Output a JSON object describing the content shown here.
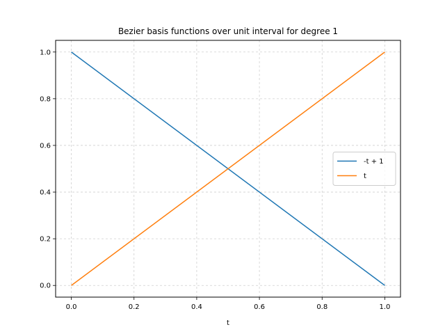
{
  "chart_data": {
    "type": "line",
    "title": "Bezier basis functions over unit interval for degree 1",
    "xlabel": "t",
    "ylabel": "",
    "xlim": [
      -0.05,
      1.05
    ],
    "ylim": [
      -0.05,
      1.05
    ],
    "xticks": [
      "0.0",
      "0.2",
      "0.4",
      "0.6",
      "0.8",
      "1.0"
    ],
    "yticks": [
      "0.0",
      "0.2",
      "0.4",
      "0.6",
      "0.8",
      "1.0"
    ],
    "grid": true,
    "legend_position": "center-right",
    "series": [
      {
        "name": "-t + 1",
        "color": "#1f77b4",
        "x": [
          0.0,
          1.0
        ],
        "y": [
          1.0,
          0.0
        ]
      },
      {
        "name": "t",
        "color": "#ff7f0e",
        "x": [
          0.0,
          1.0
        ],
        "y": [
          0.0,
          1.0
        ]
      }
    ]
  }
}
